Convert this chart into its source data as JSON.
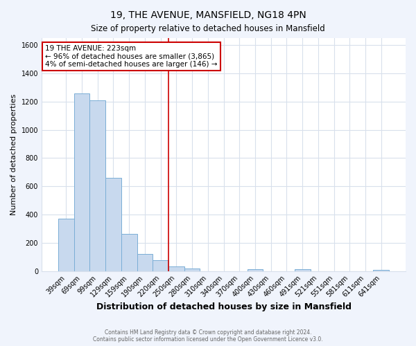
{
  "title": "19, THE AVENUE, MANSFIELD, NG18 4PN",
  "subtitle": "Size of property relative to detached houses in Mansfield",
  "xlabel": "Distribution of detached houses by size in Mansfield",
  "ylabel": "Number of detached properties",
  "bar_labels": [
    "39sqm",
    "69sqm",
    "99sqm",
    "129sqm",
    "159sqm",
    "190sqm",
    "220sqm",
    "250sqm",
    "280sqm",
    "310sqm",
    "340sqm",
    "370sqm",
    "400sqm",
    "430sqm",
    "460sqm",
    "491sqm",
    "521sqm",
    "551sqm",
    "581sqm",
    "611sqm",
    "641sqm"
  ],
  "bar_values": [
    370,
    1260,
    1210,
    660,
    265,
    120,
    75,
    35,
    20,
    0,
    0,
    0,
    15,
    0,
    0,
    15,
    0,
    0,
    0,
    0,
    10
  ],
  "bar_color": "#c8d9ee",
  "bar_edge_color": "#7aaed6",
  "property_line_index": 6,
  "annotation_text_line1": "19 THE AVENUE: 223sqm",
  "annotation_text_line2": "← 96% of detached houses are smaller (3,865)",
  "annotation_text_line3": "4% of semi-detached houses are larger (146) →",
  "annotation_box_color": "#ffffff",
  "annotation_box_edge_color": "#cc0000",
  "property_line_color": "#cc0000",
  "ylim": [
    0,
    1650
  ],
  "yticks": [
    0,
    200,
    400,
    600,
    800,
    1000,
    1200,
    1400,
    1600
  ],
  "plot_bg_color": "#ffffff",
  "fig_bg_color": "#f0f4fc",
  "grid_color": "#d8e0ec",
  "footer_line1": "Contains HM Land Registry data © Crown copyright and database right 2024.",
  "footer_line2": "Contains public sector information licensed under the Open Government Licence v3.0."
}
